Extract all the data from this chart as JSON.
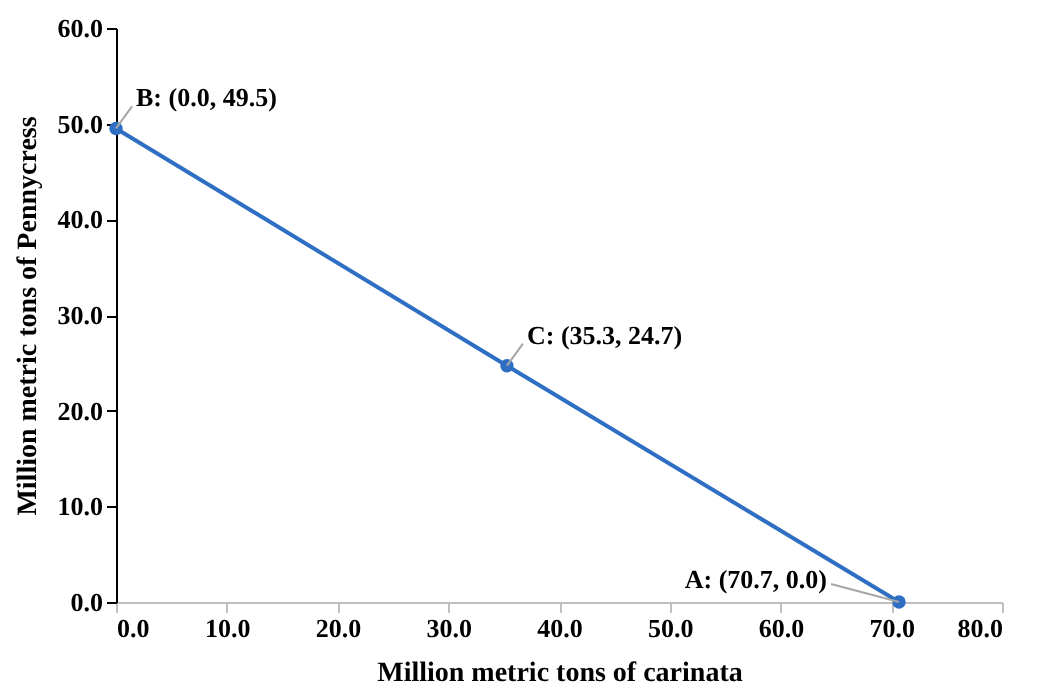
{
  "chart_data": {
    "type": "line",
    "xlabel": "Million metric tons of carinata",
    "ylabel": "Million metric tons of Pennycress",
    "x": [
      0.0,
      35.3,
      70.7
    ],
    "series": [
      {
        "color": "#2e6fc4",
        "values": [
          49.5,
          24.7,
          0.0
        ]
      }
    ],
    "xlim": [
      0,
      80
    ],
    "xticks": [
      {
        "value": 0,
        "label": "0.0"
      },
      {
        "value": 10,
        "label": "10.0"
      },
      {
        "value": 20,
        "label": "20.0"
      },
      {
        "value": 30,
        "label": "30.0"
      },
      {
        "value": 40,
        "label": "40.0"
      },
      {
        "value": 50,
        "label": "50.0"
      },
      {
        "value": 60,
        "label": "60.0"
      },
      {
        "value": 70,
        "label": "70.0"
      },
      {
        "value": 80,
        "label": "80.0"
      }
    ],
    "ylim": [
      0,
      60
    ],
    "yticks": [
      {
        "value": 0,
        "label": "0.0"
      },
      {
        "value": 10,
        "label": "10.0"
      },
      {
        "value": 20,
        "label": "20.0"
      },
      {
        "value": 30,
        "label": "30.0"
      },
      {
        "value": 40,
        "label": "40.0"
      },
      {
        "value": 50,
        "label": "50.0"
      },
      {
        "value": 60,
        "label": "60.0"
      }
    ],
    "marker": "circle",
    "line_style": "solid",
    "grid": false,
    "annotations": [
      {
        "text": "B: (0.0, 49.5)",
        "x": 0.0,
        "y": 49.5
      },
      {
        "text": "C: (35.3, 24.7)",
        "x": 35.3,
        "y": 24.7
      },
      {
        "text": "A: (70.7, 0.0)",
        "x": 70.7,
        "y": 0.0
      }
    ]
  }
}
